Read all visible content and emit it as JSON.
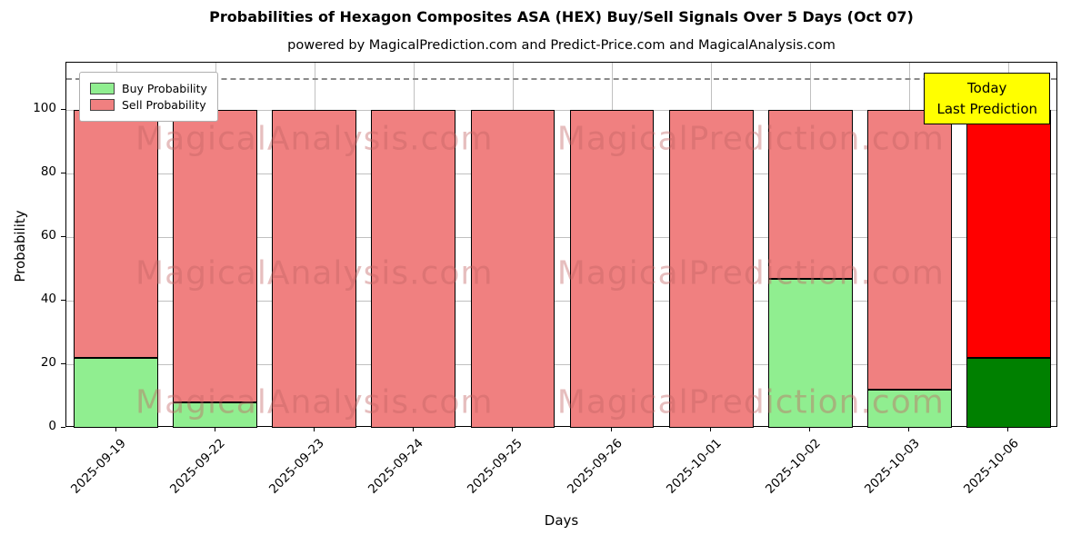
{
  "chart_data": {
    "type": "bar",
    "stacked": true,
    "title": "Probabilities of Hexagon Composites ASA (HEX) Buy/Sell Signals Over 5 Days (Oct 07)",
    "subtitle": "powered by MagicalPrediction.com and Predict-Price.com and MagicalAnalysis.com",
    "xlabel": "Days",
    "ylabel": "Probability",
    "categories": [
      "2025-09-19",
      "2025-09-22",
      "2025-09-23",
      "2025-09-24",
      "2025-09-25",
      "2025-09-26",
      "2025-10-01",
      "2025-10-02",
      "2025-10-03",
      "2025-10-06"
    ],
    "series": [
      {
        "name": "Buy Probability",
        "values": [
          22,
          8,
          0,
          0,
          0,
          0,
          0,
          47,
          12,
          22
        ],
        "color": "#90EE90",
        "last_color": "#008000"
      },
      {
        "name": "Sell Probability",
        "values": [
          78,
          92,
          100,
          100,
          100,
          100,
          100,
          53,
          88,
          78
        ],
        "color": "#F08080",
        "last_color": "#FF0000"
      }
    ],
    "ylim": [
      0,
      115
    ],
    "yticks": [
      0,
      20,
      40,
      60,
      80,
      100
    ],
    "dashed_line_y": 110,
    "grid": true,
    "legend_position": "upper-left",
    "annotation": {
      "line1": "Today",
      "line2": "Last Prediction",
      "bg_color": "#FFFF00"
    },
    "watermark": {
      "left": "MagicalAnalysis.com",
      "right": "MagicalPrediction.com"
    }
  }
}
